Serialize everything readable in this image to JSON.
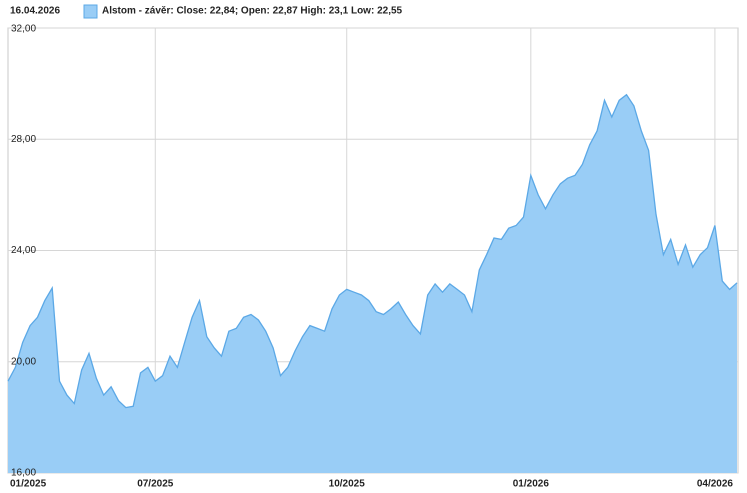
{
  "date_label": "16.04.2026",
  "chart_data": {
    "type": "area",
    "categories": [
      "01/2025",
      null,
      null,
      null,
      null,
      null,
      null,
      null,
      null,
      null,
      null,
      null,
      null,
      null,
      null,
      null,
      null,
      null,
      null,
      null,
      "07/2025",
      null,
      null,
      null,
      null,
      null,
      null,
      null,
      null,
      null,
      null,
      null,
      null,
      null,
      null,
      null,
      null,
      null,
      null,
      null,
      null,
      null,
      null,
      null,
      null,
      null,
      "10/2025",
      null,
      null,
      null,
      null,
      null,
      null,
      null,
      null,
      null,
      null,
      null,
      null,
      null,
      null,
      null,
      null,
      null,
      null,
      null,
      null,
      null,
      null,
      null,
      null,
      "01/2026",
      null,
      null,
      null,
      null,
      null,
      null,
      null,
      null,
      null,
      null,
      null,
      null,
      null,
      null,
      null,
      null,
      null,
      null,
      null,
      null,
      null,
      null,
      null,
      null,
      "04/2026",
      null,
      null,
      null
    ],
    "series": [
      {
        "name": "Alstom - závěr: Close: 22,84; Open: 22,87 High: 23,1 Low: 22,55",
        "color": "#99cdf6",
        "line_color": "#5ba8e6",
        "values": [
          19.3,
          19.8,
          20.7,
          21.3,
          21.6,
          22.2,
          22.65,
          19.3,
          18.8,
          18.5,
          19.7,
          20.3,
          19.4,
          18.8,
          19.1,
          18.6,
          18.35,
          18.4,
          19.6,
          19.8,
          19.3,
          19.5,
          20.2,
          19.8,
          20.7,
          21.6,
          22.2,
          20.9,
          20.5,
          20.2,
          21.1,
          21.2,
          21.6,
          21.7,
          21.5,
          21.1,
          20.5,
          19.5,
          19.8,
          20.4,
          20.9,
          21.3,
          21.2,
          21.1,
          21.9,
          22.4,
          22.6,
          22.5,
          22.4,
          22.2,
          21.8,
          21.7,
          21.9,
          22.15,
          21.7,
          21.3,
          21.0,
          22.4,
          22.8,
          22.5,
          22.8,
          22.6,
          22.4,
          21.8,
          23.3,
          23.85,
          24.45,
          24.4,
          24.8,
          24.9,
          25.2,
          26.7,
          26.0,
          25.5,
          26.0,
          26.4,
          26.6,
          26.7,
          27.1,
          27.8,
          28.3,
          29.4,
          28.8,
          29.4,
          29.6,
          29.2,
          28.3,
          27.6,
          25.3,
          23.85,
          24.4,
          23.5,
          24.2,
          23.4,
          23.85,
          24.1,
          24.9,
          22.9,
          22.6,
          22.84
        ]
      }
    ],
    "ylim": [
      16,
      32
    ],
    "yticks": [
      {
        "value": 16,
        "label": "16,00"
      },
      {
        "value": 20,
        "label": "20,00"
      },
      {
        "value": 24,
        "label": "24,00"
      },
      {
        "value": 28,
        "label": "28,00"
      },
      {
        "value": 32,
        "label": "32,00"
      }
    ],
    "grid": true
  }
}
